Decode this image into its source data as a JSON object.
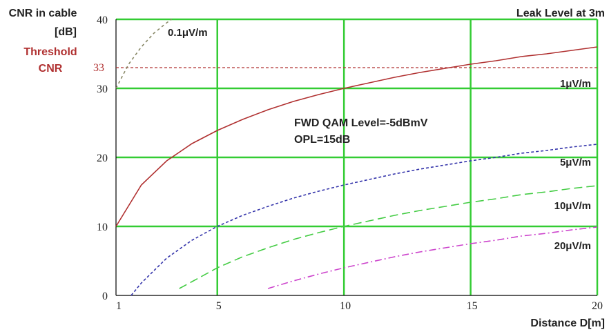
{
  "chart_data": {
    "type": "line",
    "title": "Leak Level at 3m",
    "ylabel_line1": "CNR in cable",
    "ylabel_line2": "[dB]",
    "xlabel": "Distance D[m]",
    "xlim": [
      1,
      20
    ],
    "ylim": [
      0,
      40
    ],
    "xticks": [
      1,
      5,
      10,
      15,
      20
    ],
    "yticks": [
      0,
      10,
      20,
      30,
      40
    ],
    "grid": true,
    "threshold": {
      "label_line1": "Threshold",
      "label_line2": "CNR",
      "value": 33,
      "value_label": "33",
      "color": "#b03030"
    },
    "annotation": {
      "line1": "FWD QAM Level=-5dBmV",
      "line2": "OPL=15dB"
    },
    "colors": {
      "grid": "#33cc33",
      "axis": "#000000"
    },
    "series": [
      {
        "name": "0.1μV/m",
        "color": "#888866",
        "dash": "4,4",
        "x": [
          1,
          1.5,
          2,
          2.5,
          3,
          3.2
        ],
        "y": [
          30,
          33.5,
          36,
          38,
          39.5,
          40
        ]
      },
      {
        "name": "1μV/m",
        "color": "#b03030",
        "dash": "",
        "x": [
          1,
          2,
          3,
          4,
          5,
          6,
          7,
          8,
          9,
          10,
          11,
          12,
          13,
          14,
          15,
          16,
          17,
          18,
          19,
          20
        ],
        "y": [
          10,
          16,
          19.5,
          22,
          23.9,
          25.5,
          26.9,
          28.1,
          29.1,
          30,
          30.8,
          31.6,
          32.3,
          32.9,
          33.5,
          34,
          34.6,
          35,
          35.5,
          36
        ]
      },
      {
        "name": "5μV/m",
        "color": "#3333aa",
        "dash": "4,3",
        "x": [
          1.6,
          2,
          3,
          4,
          5,
          6,
          7,
          8,
          9,
          10,
          11,
          12,
          13,
          14,
          15,
          16,
          17,
          18,
          19,
          20
        ],
        "y": [
          0,
          1.8,
          5.4,
          8,
          10,
          11.6,
          12.9,
          14.1,
          15.1,
          16,
          16.8,
          17.6,
          18.3,
          18.9,
          19.5,
          20,
          20.6,
          21,
          21.5,
          21.9
        ]
      },
      {
        "name": "10μV/m",
        "color": "#44cc44",
        "dash": "12,6",
        "x": [
          3.5,
          4,
          5,
          6,
          7,
          8,
          9,
          10,
          11,
          12,
          13,
          14,
          15,
          16,
          17,
          18,
          19,
          20
        ],
        "y": [
          1,
          2,
          4,
          5.6,
          6.9,
          8.1,
          9.1,
          10,
          10.8,
          11.6,
          12.3,
          12.9,
          13.5,
          14,
          14.6,
          15,
          15.5,
          15.9
        ]
      },
      {
        "name": "20μV/m",
        "color": "#cc44cc",
        "dash": "10,4,2,4",
        "x": [
          7,
          8,
          9,
          10,
          11,
          12,
          13,
          14,
          15,
          16,
          17,
          18,
          19,
          20
        ],
        "y": [
          1,
          2.1,
          3.1,
          4,
          4.8,
          5.6,
          6.3,
          6.9,
          7.5,
          8,
          8.6,
          9,
          9.5,
          9.9
        ]
      }
    ]
  }
}
